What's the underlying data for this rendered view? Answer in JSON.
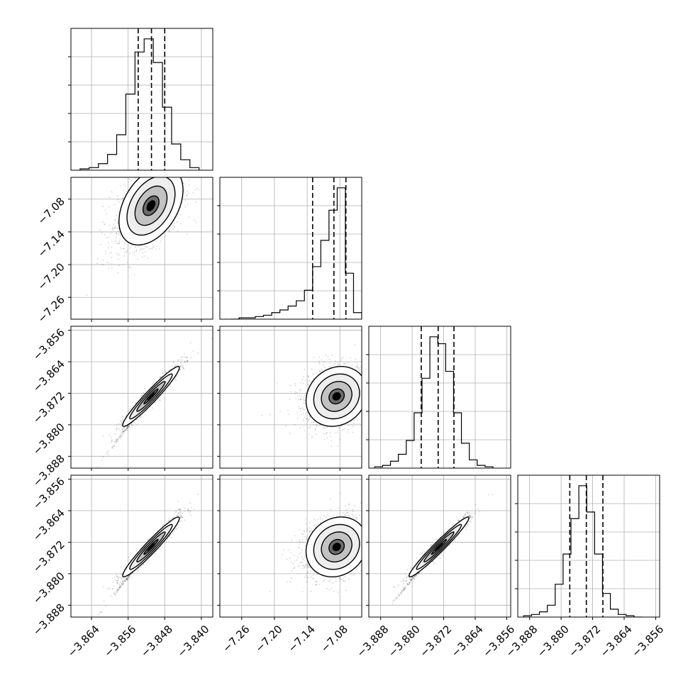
{
  "chart_data": {
    "type": "corner",
    "parameters": [
      {
        "range": [
          -3.8685,
          -3.8375
        ],
        "ticks": [
          -3.864,
          -3.856,
          -3.848,
          -3.84
        ],
        "tick_labels": [
          "−3.864",
          "−3.856",
          "−3.848",
          "−3.840"
        ]
      },
      {
        "range": [
          -7.3,
          -7.04
        ],
        "ticks": [
          -7.26,
          -7.2,
          -7.14,
          -7.08
        ],
        "tick_labels": [
          "−7.26",
          "−7.20",
          "−7.14",
          "−7.08"
        ]
      },
      {
        "range": [
          -3.891,
          -3.855
        ],
        "ticks": [
          -3.888,
          -3.88,
          -3.872,
          -3.864,
          -3.856
        ],
        "tick_labels": [
          "−3.888",
          "−3.880",
          "−3.872",
          "−3.864",
          "−3.856"
        ]
      },
      {
        "range": [
          -3.891,
          -3.855
        ],
        "ticks": [
          -3.888,
          -3.88,
          -3.872,
          -3.864,
          -3.856
        ],
        "tick_labels": [
          "−3.888",
          "−3.880",
          "−3.872",
          "−3.864",
          "−3.856"
        ]
      }
    ],
    "histograms": [
      {
        "bins": [
          -3.8665,
          -3.8645,
          -3.8625,
          -3.8605,
          -3.8585,
          -3.8565,
          -3.8545,
          -3.8525,
          -3.8505,
          -3.8485,
          -3.8465,
          -3.8445,
          -3.8425,
          -3.8405
        ],
        "counts": [
          1,
          2,
          5,
          12,
          27,
          58,
          90,
          100,
          82,
          48,
          20,
          8,
          2
        ],
        "quantiles": [
          -3.8538,
          -3.8509,
          -3.848
        ]
      },
      {
        "bins": [
          -7.28,
          -7.265,
          -7.25,
          -7.235,
          -7.22,
          -7.205,
          -7.19,
          -7.175,
          -7.16,
          -7.145,
          -7.13,
          -7.115,
          -7.1,
          -7.085,
          -7.07,
          -7.055,
          -7.04
        ],
        "counts": [
          0,
          1,
          1,
          2,
          3,
          5,
          7,
          10,
          14,
          22,
          40,
          60,
          83,
          100,
          35,
          5
        ],
        "quantiles": [
          -7.13,
          -7.091,
          -7.069
        ]
      },
      {
        "bins": [
          -3.8895,
          -3.8875,
          -3.8855,
          -3.8835,
          -3.8815,
          -3.8795,
          -3.8775,
          -3.8755,
          -3.8735,
          -3.8715,
          -3.8695,
          -3.8675,
          -3.8655,
          -3.8635,
          -3.8615,
          -3.8595
        ],
        "counts": [
          1,
          2,
          5,
          10,
          20,
          40,
          65,
          95,
          90,
          70,
          40,
          18,
          6,
          2,
          1
        ],
        "quantiles": [
          -3.8777,
          -3.8734,
          -3.8694
        ]
      },
      {
        "bins": [
          -3.8895,
          -3.8875,
          -3.8855,
          -3.8835,
          -3.8815,
          -3.8795,
          -3.8775,
          -3.8755,
          -3.8735,
          -3.8715,
          -3.8695,
          -3.8675,
          -3.8655,
          -3.8635,
          -3.8615,
          -3.8595
        ],
        "counts": [
          1,
          2,
          4,
          9,
          25,
          48,
          75,
          100,
          80,
          48,
          18,
          6,
          2,
          1,
          0
        ],
        "quantiles": [
          -3.8778,
          -3.8736,
          -3.8694
        ]
      }
    ],
    "joint_posteriors": [
      {
        "pair": [
          1,
          0
        ],
        "mean": [
          -3.851,
          -7.092
        ],
        "sd": [
          0.0035,
          0.036
        ],
        "corr": 0.4
      },
      {
        "pair": [
          2,
          0
        ],
        "mean": [
          -3.851,
          -3.8728
        ],
        "sd": [
          0.0031,
          0.0038
        ],
        "corr": 0.96
      },
      {
        "pair": [
          2,
          1
        ],
        "mean": [
          -7.086,
          -3.8728
        ],
        "sd": [
          0.028,
          0.0038
        ],
        "corr": 0.15
      },
      {
        "pair": [
          3,
          0
        ],
        "mean": [
          -3.851,
          -3.8732
        ],
        "sd": [
          0.0031,
          0.0038
        ],
        "corr": 0.96
      },
      {
        "pair": [
          3,
          1
        ],
        "mean": [
          -7.086,
          -3.8732
        ],
        "sd": [
          0.028,
          0.0038
        ],
        "corr": 0.15
      },
      {
        "pair": [
          3,
          2
        ],
        "mean": [
          -3.8732,
          -3.8732
        ],
        "sd": [
          0.0038,
          0.0038
        ],
        "corr": 0.97
      }
    ],
    "contour_levels": [
      0.5,
      1.0,
      1.5
    ],
    "grid": true,
    "legend": "none"
  }
}
